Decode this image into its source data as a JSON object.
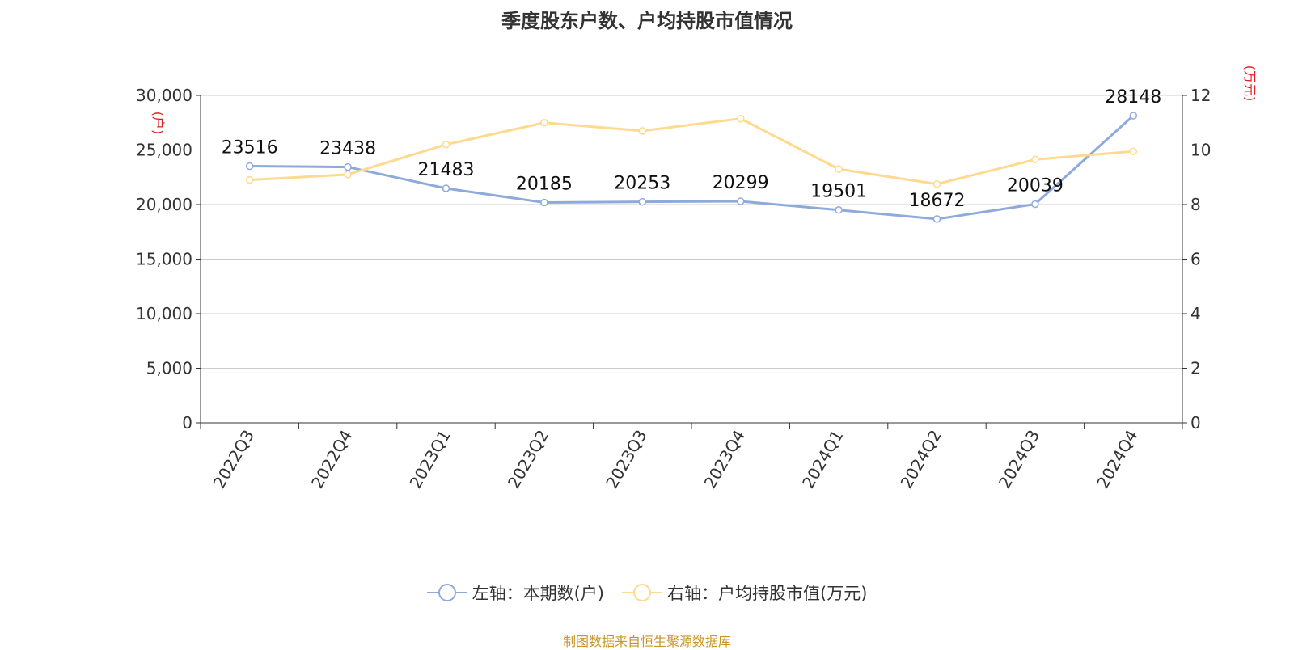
{
  "chart_data": {
    "type": "line",
    "title": "季度股东户数、户均持股市值情况",
    "categories": [
      "2022Q3",
      "2022Q4",
      "2023Q1",
      "2023Q2",
      "2023Q3",
      "2023Q4",
      "2024Q1",
      "2024Q2",
      "2024Q3",
      "2024Q4"
    ],
    "series": [
      {
        "name": "左轴：本期数(户)",
        "axis": "left",
        "color": "#8eaadb",
        "values": [
          23516,
          23438,
          21483,
          20185,
          20253,
          20299,
          19501,
          18672,
          20039,
          28148
        ],
        "labels": [
          "23516",
          "23438",
          "21483",
          "20185",
          "20253",
          "20299",
          "19501",
          "18672",
          "20039",
          "28148"
        ]
      },
      {
        "name": "右轴：户均持股市值(万元)",
        "axis": "right",
        "color": "#ffd98e",
        "values": [
          8.9,
          9.1,
          10.2,
          11.0,
          10.7,
          11.15,
          9.3,
          8.75,
          9.65,
          9.95
        ]
      }
    ],
    "left_axis": {
      "unit": "(户)",
      "ylim": [
        0,
        30000
      ],
      "ticks": [
        0,
        5000,
        10000,
        15000,
        20000,
        25000,
        30000
      ],
      "tick_labels": [
        "0",
        "5,000",
        "10,000",
        "15,000",
        "20,000",
        "25,000",
        "30,000"
      ]
    },
    "right_axis": {
      "unit": "(万元)",
      "ylim": [
        0,
        12
      ],
      "ticks": [
        0,
        2,
        4,
        6,
        8,
        10,
        12
      ],
      "tick_labels": [
        "0",
        "2",
        "4",
        "6",
        "8",
        "10",
        "12"
      ]
    },
    "grid": true,
    "legend_position": "bottom-center",
    "source": "制图数据来自恒生聚源数据库"
  }
}
